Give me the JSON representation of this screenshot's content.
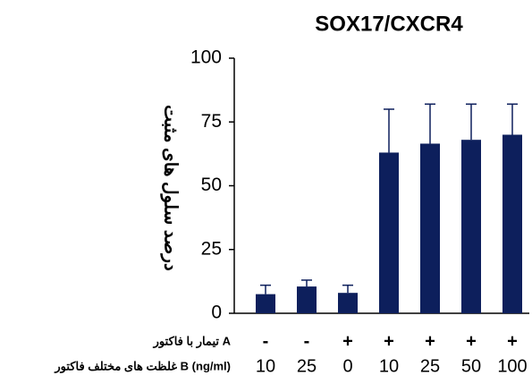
{
  "chart_data": {
    "type": "bar",
    "title": "SOX17/CXCR4",
    "y_label": "درصد سلول های مثبت",
    "row_labels": [
      "تیمار با فاکتور A",
      "غلظت های مختلف فاکتور B (ng/ml)"
    ],
    "treatment_a": [
      "-",
      "-",
      "+",
      "+",
      "+",
      "+",
      "+"
    ],
    "categories": [
      "10",
      "25",
      "0",
      "10",
      "25",
      "50",
      "100"
    ],
    "values": [
      7.5,
      10.5,
      8,
      63,
      66.5,
      68,
      70
    ],
    "errors": [
      3.5,
      2.5,
      3,
      17,
      15.5,
      14,
      12
    ],
    "color": "#0d1f5c",
    "ylim": [
      0,
      100
    ],
    "yticks": [
      0,
      25,
      50,
      75,
      100
    ],
    "grid": false
  }
}
